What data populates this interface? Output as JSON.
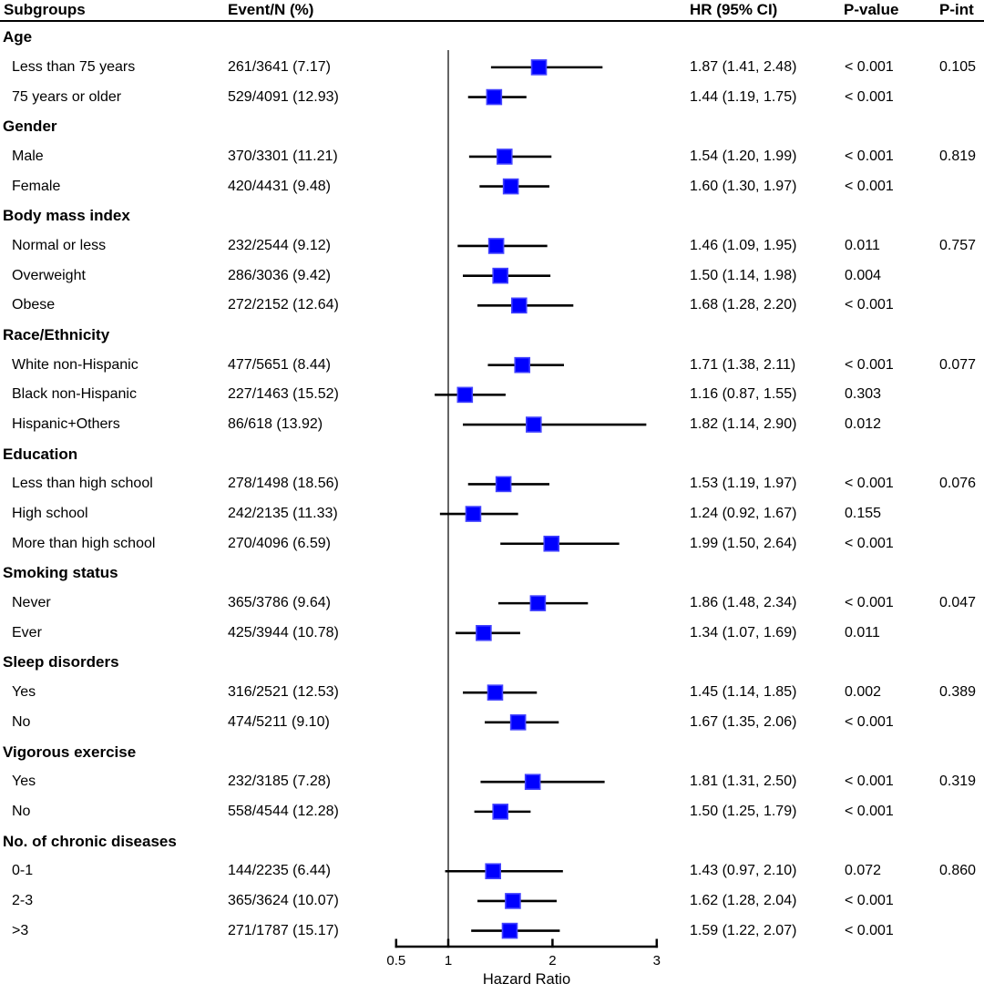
{
  "chart_data": {
    "type": "forest",
    "xlabel": "Hazard Ratio",
    "columns": [
      "Subgroups",
      "Event/N (%)",
      "HR (95% CI)",
      "P-value",
      "P-int"
    ],
    "axis": {
      "scale": "linear",
      "min": 0.5,
      "max": 3,
      "tick_values": [
        0.5,
        1,
        2,
        3
      ],
      "tick_labels": [
        "0.5",
        "1",
        "2",
        "3"
      ],
      "reference_line": 1,
      "grid": false
    },
    "colors": {
      "marker_fill": "#0000fe",
      "marker_border": "#4343ff",
      "ci_line": "#000000",
      "reference_line": "#4a4a4a",
      "axis_line": "#000000"
    },
    "groups": [
      {
        "label": "Age",
        "rows": [
          {
            "label": "Less than 75 years",
            "event": "261/3641 (7.17)",
            "hr": 1.87,
            "lo": 1.41,
            "hi": 2.48,
            "hr_text": "1.87 (1.41, 2.48)",
            "p": "< 0.001",
            "p_int": "0.105"
          },
          {
            "label": "75 years or older",
            "event": "529/4091 (12.93)",
            "hr": 1.44,
            "lo": 1.19,
            "hi": 1.75,
            "hr_text": "1.44 (1.19, 1.75)",
            "p": "< 0.001",
            "p_int": ""
          }
        ]
      },
      {
        "label": "Gender",
        "rows": [
          {
            "label": "Male",
            "event": "370/3301 (11.21)",
            "hr": 1.54,
            "lo": 1.2,
            "hi": 1.99,
            "hr_text": "1.54 (1.20, 1.99)",
            "p": "< 0.001",
            "p_int": "0.819"
          },
          {
            "label": "Female",
            "event": "420/4431 (9.48)",
            "hr": 1.6,
            "lo": 1.3,
            "hi": 1.97,
            "hr_text": "1.60 (1.30, 1.97)",
            "p": "< 0.001",
            "p_int": ""
          }
        ]
      },
      {
        "label": "Body mass index",
        "rows": [
          {
            "label": "Normal or less",
            "event": "232/2544 (9.12)",
            "hr": 1.46,
            "lo": 1.09,
            "hi": 1.95,
            "hr_text": "1.46 (1.09, 1.95)",
            "p": "0.011",
            "p_int": "0.757"
          },
          {
            "label": "Overweight",
            "event": "286/3036 (9.42)",
            "hr": 1.5,
            "lo": 1.14,
            "hi": 1.98,
            "hr_text": "1.50 (1.14, 1.98)",
            "p": "0.004",
            "p_int": ""
          },
          {
            "label": "Obese",
            "event": "272/2152 (12.64)",
            "hr": 1.68,
            "lo": 1.28,
            "hi": 2.2,
            "hr_text": "1.68 (1.28, 2.20)",
            "p": "< 0.001",
            "p_int": ""
          }
        ]
      },
      {
        "label": "Race/Ethnicity",
        "rows": [
          {
            "label": "White non-Hispanic",
            "event": "477/5651 (8.44)",
            "hr": 1.71,
            "lo": 1.38,
            "hi": 2.11,
            "hr_text": "1.71 (1.38, 2.11)",
            "p": "< 0.001",
            "p_int": "0.077"
          },
          {
            "label": "Black non-Hispanic",
            "event": "227/1463 (15.52)",
            "hr": 1.16,
            "lo": 0.87,
            "hi": 1.55,
            "hr_text": "1.16 (0.87, 1.55)",
            "p": "0.303",
            "p_int": ""
          },
          {
            "label": "Hispanic+Others",
            "event": "86/618 (13.92)",
            "hr": 1.82,
            "lo": 1.14,
            "hi": 2.9,
            "hr_text": "1.82 (1.14, 2.90)",
            "p": "0.012",
            "p_int": ""
          }
        ]
      },
      {
        "label": "Education",
        "rows": [
          {
            "label": "Less than high school",
            "event": "278/1498 (18.56)",
            "hr": 1.53,
            "lo": 1.19,
            "hi": 1.97,
            "hr_text": "1.53 (1.19, 1.97)",
            "p": "< 0.001",
            "p_int": "0.076"
          },
          {
            "label": "High school",
            "event": "242/2135 (11.33)",
            "hr": 1.24,
            "lo": 0.92,
            "hi": 1.67,
            "hr_text": "1.24 (0.92, 1.67)",
            "p": "0.155",
            "p_int": ""
          },
          {
            "label": "More than high school",
            "event": "270/4096 (6.59)",
            "hr": 1.99,
            "lo": 1.5,
            "hi": 2.64,
            "hr_text": "1.99 (1.50, 2.64)",
            "p": "< 0.001",
            "p_int": ""
          }
        ]
      },
      {
        "label": "Smoking status",
        "rows": [
          {
            "label": "Never",
            "event": "365/3786 (9.64)",
            "hr": 1.86,
            "lo": 1.48,
            "hi": 2.34,
            "hr_text": "1.86 (1.48, 2.34)",
            "p": "< 0.001",
            "p_int": "0.047"
          },
          {
            "label": "Ever",
            "event": "425/3944 (10.78)",
            "hr": 1.34,
            "lo": 1.07,
            "hi": 1.69,
            "hr_text": "1.34 (1.07, 1.69)",
            "p": "0.011",
            "p_int": ""
          }
        ]
      },
      {
        "label": "Sleep disorders",
        "rows": [
          {
            "label": "Yes",
            "event": "316/2521 (12.53)",
            "hr": 1.45,
            "lo": 1.14,
            "hi": 1.85,
            "hr_text": "1.45 (1.14, 1.85)",
            "p": "0.002",
            "p_int": "0.389"
          },
          {
            "label": "No",
            "event": "474/5211 (9.10)",
            "hr": 1.67,
            "lo": 1.35,
            "hi": 2.06,
            "hr_text": "1.67 (1.35, 2.06)",
            "p": "< 0.001",
            "p_int": ""
          }
        ]
      },
      {
        "label": "Vigorous exercise",
        "rows": [
          {
            "label": "Yes",
            "event": "232/3185 (7.28)",
            "hr": 1.81,
            "lo": 1.31,
            "hi": 2.5,
            "hr_text": "1.81 (1.31, 2.50)",
            "p": "< 0.001",
            "p_int": "0.319"
          },
          {
            "label": "No",
            "event": "558/4544 (12.28)",
            "hr": 1.5,
            "lo": 1.25,
            "hi": 1.79,
            "hr_text": "1.50 (1.25, 1.79)",
            "p": "< 0.001",
            "p_int": ""
          }
        ]
      },
      {
        "label": "No. of chronic diseases",
        "rows": [
          {
            "label": "0-1",
            "event": "144/2235 (6.44)",
            "hr": 1.43,
            "lo": 0.97,
            "hi": 2.1,
            "hr_text": "1.43 (0.97, 2.10)",
            "p": "0.072",
            "p_int": "0.860"
          },
          {
            "label": "2-3",
            "event": "365/3624 (10.07)",
            "hr": 1.62,
            "lo": 1.28,
            "hi": 2.04,
            "hr_text": "1.62 (1.28, 2.04)",
            "p": "< 0.001",
            "p_int": ""
          },
          {
            "label": ">3",
            "event": "271/1787 (15.17)",
            "hr": 1.59,
            "lo": 1.22,
            "hi": 2.07,
            "hr_text": "1.59 (1.22, 2.07)",
            "p": "< 0.001",
            "p_int": ""
          }
        ]
      }
    ]
  }
}
